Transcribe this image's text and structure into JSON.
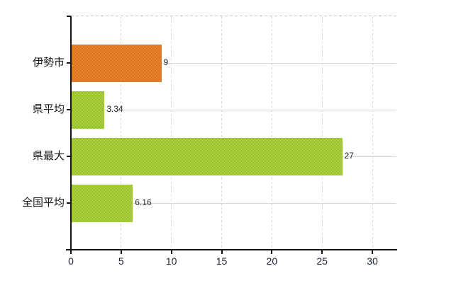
{
  "chart_data": {
    "type": "bar",
    "orientation": "horizontal",
    "title": "",
    "xlabel": "",
    "ylabel": "",
    "categories": [
      "伊勢市",
      "県平均",
      "県最大",
      "全国平均"
    ],
    "values": [
      9,
      3.34,
      27,
      6.16
    ],
    "value_labels": [
      "9",
      "3.34",
      "27",
      "6.16"
    ],
    "bar_colors": [
      {
        "base": "#ef8c2e",
        "dot": "#d2691c"
      },
      {
        "base": "#b5d53c",
        "dot": "#8dbe2d"
      },
      {
        "base": "#b5d53c",
        "dot": "#8dbe2d"
      },
      {
        "base": "#b5d53c",
        "dot": "#8dbe2d"
      }
    ],
    "x_ticks": [
      0,
      5,
      10,
      15,
      20,
      25,
      30
    ],
    "xlim": [
      0,
      32.4
    ],
    "grid": {
      "vertical": "dashed",
      "horizontal": "solid-at-category-centers"
    },
    "legend": false
  },
  "colors": {
    "background": "#ffffff",
    "axis": "#141414",
    "h_gridline": "#d5dad1",
    "v_gridline": "#d8d5db",
    "top_border": "#c6c6c6",
    "tick_label": "#1c2430",
    "value_label": "#25252b",
    "category_label": "#141414"
  }
}
